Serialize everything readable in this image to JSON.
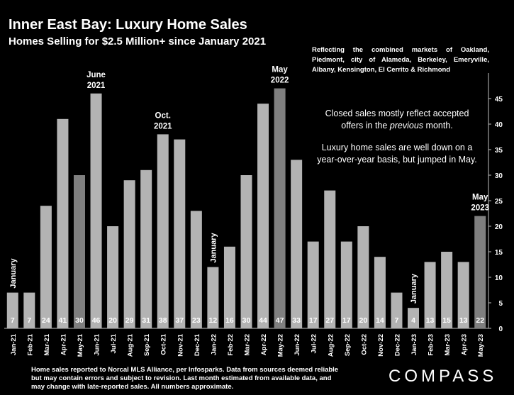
{
  "title": "Inner East Bay: Luxury Home Sales",
  "subtitle": "Homes Selling for $2.5 Million+ since January 2021",
  "reflecting_note": "Reflecting the combined markets of Oakland, Piedmont, city of Alameda, Berkeley, Emeryville, Albany, Kensington, El Cerrito & Richmond",
  "annotation_line1a": "Closed sales mostly reflect accepted",
  "annotation_line1b_pre": "offers in the ",
  "annotation_line1b_em": "previous",
  "annotation_line1b_post": " month.",
  "annotation_line2": "Luxury home sales are well down on a year-over-year basis, but jumped in May.",
  "footer": "Home sales reported to Norcal MLS Alliance, per Infosparks. Data from sources deemed reliable but may contain errors and subject to revision.  Last month estimated from available data, and may change with late-reported sales. All numbers approximate.",
  "logo": "COMPASS",
  "colors": {
    "bar": "#b3b3b3",
    "highlight_bar": "#7f7f7f",
    "background": "#000000",
    "text": "#ffffff"
  },
  "chart_data": {
    "type": "bar",
    "categories": [
      "Jan-21",
      "Feb-21",
      "Mar-21",
      "Apr-21",
      "May-21",
      "Jun-21",
      "Jul-21",
      "Aug-21",
      "Sep-21",
      "Oct-21",
      "Nov-21",
      "Dec-21",
      "Jan-22",
      "Feb-22",
      "Mar-22",
      "Apr-22",
      "May-22",
      "Jun-22",
      "Jul-22",
      "Aug-22",
      "Sep-22",
      "Oct-22",
      "Nov-22",
      "Dec-22",
      "Jan-23",
      "Feb-23",
      "Mar-23",
      "Apr-23",
      "May-23"
    ],
    "values": [
      7,
      7,
      24,
      41,
      30,
      46,
      20,
      29,
      31,
      38,
      37,
      23,
      12,
      16,
      30,
      44,
      47,
      33,
      17,
      27,
      17,
      20,
      14,
      7,
      4,
      13,
      15,
      13,
      22
    ],
    "highlighted": [
      "May-21",
      "May-22",
      "May-23"
    ],
    "y_ticks": [
      0,
      5,
      10,
      15,
      20,
      25,
      30,
      35,
      40,
      45
    ],
    "ylim": [
      0,
      48
    ],
    "y_axis_side": "right",
    "grid": false,
    "annotations": [
      {
        "category": "Jan-21",
        "text": "January",
        "orientation": "vertical"
      },
      {
        "category": "Jun-21",
        "text": "June 2021",
        "lines": [
          "June",
          "2021"
        ]
      },
      {
        "category": "Oct-21",
        "text": "Oct. 2021",
        "lines": [
          "Oct.",
          "2021"
        ]
      },
      {
        "category": "Jan-22",
        "text": "January",
        "orientation": "vertical"
      },
      {
        "category": "May-22",
        "text": "May 2022",
        "lines": [
          "May",
          "2022"
        ]
      },
      {
        "category": "Jan-23",
        "text": "January",
        "orientation": "vertical"
      },
      {
        "category": "May-23",
        "text": "May 2023",
        "lines": [
          "May",
          "2023"
        ]
      }
    ]
  }
}
